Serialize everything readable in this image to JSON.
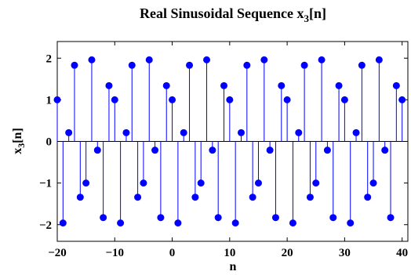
{
  "chart_data": {
    "type": "stem",
    "title_main": "Real Sinusoidal Sequence x",
    "title_sub": "3",
    "title_tail": "[n]",
    "xlabel": "n",
    "ylabel_main": "x",
    "ylabel_sub": "3",
    "ylabel_tail": "[n]",
    "xlim": [
      -20,
      41
    ],
    "ylim": [
      -2.4,
      2.4
    ],
    "xticks": [
      -20,
      -10,
      0,
      10,
      20,
      30,
      40
    ],
    "yticks": [
      -2,
      -1,
      0,
      1,
      2
    ],
    "xtick_labels": [
      "−20",
      "−10",
      "0",
      "10",
      "20",
      "30",
      "40"
    ],
    "ytick_labels": [
      "−2",
      "−1",
      "0",
      "1",
      "2"
    ],
    "grid": false,
    "stem_color": "#0000ff",
    "series": [
      {
        "x": [
          -20,
          -19,
          -18,
          -17,
          -16,
          -15,
          -14,
          -13,
          -12,
          -11,
          -10,
          -9,
          -8,
          -7,
          -6,
          -5,
          -4,
          -3,
          -2,
          -1,
          0,
          1,
          2,
          3,
          4,
          5,
          6,
          7,
          8,
          9,
          10,
          11,
          12,
          13,
          14,
          15,
          16,
          17,
          18,
          19,
          20,
          21,
          22,
          23,
          24,
          25,
          26,
          27,
          28,
          29,
          30,
          31,
          32,
          33,
          34,
          35,
          36,
          37,
          38,
          39,
          40
        ],
        "y": [
          1.0,
          -1.96,
          0.21,
          1.83,
          -1.34,
          -1.0,
          1.96,
          -0.21,
          -1.83,
          1.34,
          1.0,
          -1.96,
          0.21,
          1.83,
          -1.34,
          -1.0,
          1.96,
          -0.21,
          -1.83,
          1.34,
          1.0,
          -1.96,
          0.21,
          1.83,
          -1.34,
          -1.0,
          1.96,
          -0.21,
          -1.83,
          1.34,
          1.0,
          -1.96,
          0.21,
          1.83,
          -1.34,
          -1.0,
          1.96,
          -0.21,
          -1.83,
          1.34,
          1.0,
          -1.96,
          0.21,
          1.83,
          -1.34,
          -1.0,
          1.96,
          -0.21,
          -1.83,
          1.34,
          1.0,
          -1.96,
          0.21,
          1.83,
          -1.34,
          -1.0,
          1.96,
          -0.21,
          -1.83,
          1.34,
          1.0
        ]
      }
    ]
  }
}
